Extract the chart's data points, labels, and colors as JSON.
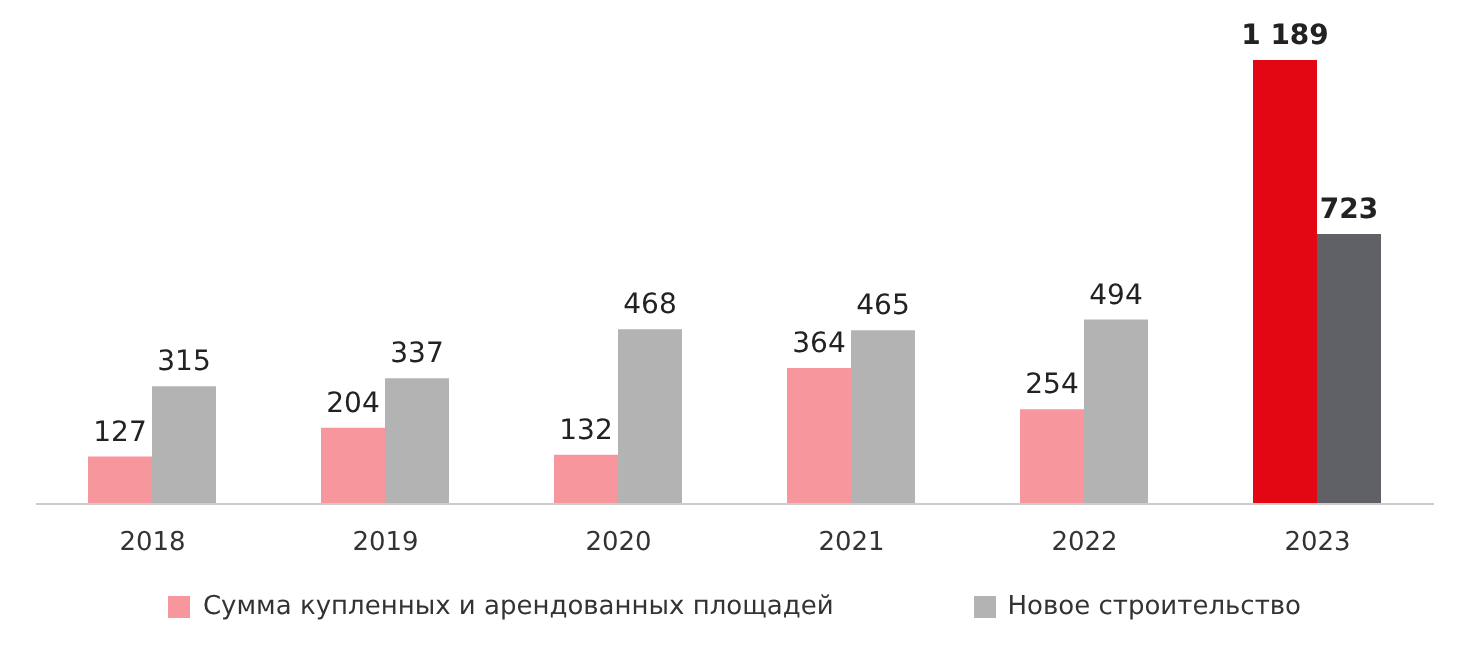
{
  "chart_data": {
    "type": "bar",
    "categories": [
      "2018",
      "2019",
      "2020",
      "2021",
      "2022",
      "2023"
    ],
    "series": [
      {
        "name": "Сумма купленных и арендованных площадей",
        "color": "#f7969d",
        "colors": [
          "#f7969d",
          "#f7969d",
          "#f7969d",
          "#f7969d",
          "#f7969d",
          "#e30613"
        ],
        "values": [
          127,
          204,
          132,
          364,
          254,
          1189
        ]
      },
      {
        "name": "Новое строительство",
        "color": "#b3b3b3",
        "colors": [
          "#b3b3b3",
          "#b3b3b3",
          "#b3b3b3",
          "#b3b3b3",
          "#b3b3b3",
          "#5f6166"
        ],
        "values": [
          315,
          337,
          468,
          465,
          494,
          723
        ]
      }
    ],
    "data_labels": true,
    "legend": "bottom"
  }
}
